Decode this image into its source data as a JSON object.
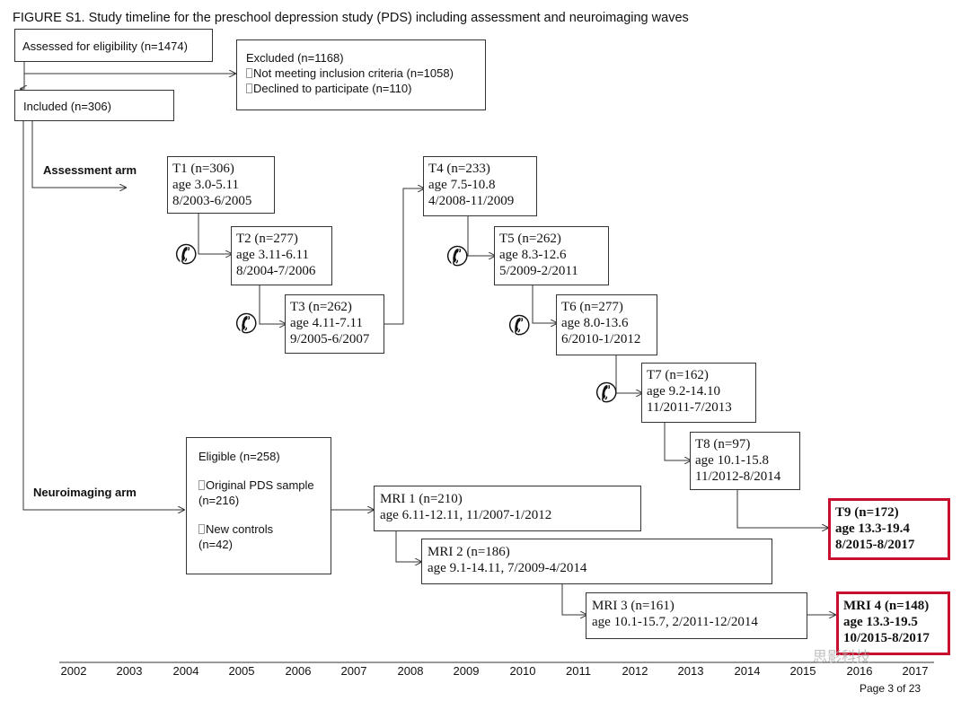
{
  "figure_title": "FIGURE S1. Study timeline for the preschool depression study (PDS) including assessment and neuroimaging waves",
  "flow": {
    "assessed": "Assessed for eligibility (n=1474)",
    "excluded": {
      "title": "Excluded (n=1168)",
      "items": [
        "Not meeting inclusion criteria (n=1058)",
        "Declined to participate (n=110)"
      ]
    },
    "included": "Included (n=306)"
  },
  "arms": {
    "assessment": "Assessment arm",
    "neuroimaging": "Neuroimaging arm"
  },
  "waves": {
    "T1": [
      "T1 (n=306)",
      "age 3.0-5.11",
      "8/2003-6/2005"
    ],
    "T2": [
      "T2 (n=277)",
      "age 3.11-6.11",
      "8/2004-7/2006"
    ],
    "T3": [
      "T3 (n=262)",
      "age 4.11-7.11",
      "9/2005-6/2007"
    ],
    "T4": [
      "T4 (n=233)",
      "age 7.5-10.8",
      "4/2008-11/2009"
    ],
    "T5": [
      "T5 (n=262)",
      "age 8.3-12.6",
      "5/2009-2/2011"
    ],
    "T6": [
      "T6 (n=277)",
      "age 8.0-13.6",
      "6/2010-1/2012"
    ],
    "T7": [
      "T7 (n=162)",
      "age 9.2-14.10",
      "11/2011-7/2013"
    ],
    "T8": [
      "T8 (n=97)",
      "age 10.1-15.8",
      "11/2012-8/2014"
    ],
    "T9": [
      "T9 (n=172)",
      "age 13.3-19.4",
      "8/2015-8/2017"
    ]
  },
  "eligible": {
    "title": "Eligible (n=258)",
    "item1": [
      "Original PDS sample",
      "(n=216)"
    ],
    "item2": [
      "New controls",
      "(n=42)"
    ]
  },
  "mri": {
    "MRI1": [
      "MRI 1 (n=210)",
      "age 6.11-12.11, 11/2007-1/2012"
    ],
    "MRI2": [
      "MRI 2 (n=186)",
      "age 9.1-14.11, 7/2009-4/2014"
    ],
    "MRI3": [
      "MRI 3 (n=161)",
      "age 10.1-15.7, 2/2011-12/2014"
    ],
    "MRI4": [
      "MRI 4 (n=148)",
      "age 13.3-19.5",
      "10/2015-8/2017"
    ]
  },
  "icons": {
    "phone": "phone-icon",
    "highlight_color": "#c8102e"
  },
  "years": [
    "2002",
    "2003",
    "2004",
    "2005",
    "2006",
    "2007",
    "2008",
    "2009",
    "2010",
    "2011",
    "2012",
    "2013",
    "2014",
    "2015",
    "2016",
    "2017"
  ],
  "page_number": "Page 3 of 23",
  "watermark": "思影科技"
}
